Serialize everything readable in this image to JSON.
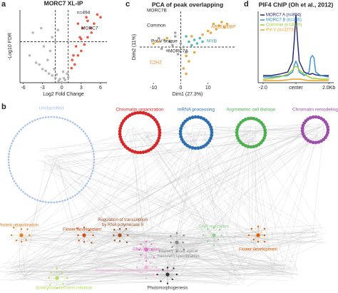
{
  "panel_labels": [
    "a",
    "b",
    "c",
    "d"
  ],
  "chart_data": [
    {
      "type": "scatter",
      "title": "MORC7 XL-IP",
      "xlabel": "Log2 Fold Change",
      "ylabel": "-Log10 FDR",
      "xlim": [
        -6.5,
        7
      ],
      "ylim": [
        0,
        8
      ],
      "xticks": [
        -6,
        -3,
        0,
        3,
        6
      ],
      "vlines": [
        -1,
        1
      ],
      "hlines": [
        4.5
      ],
      "annotations": [
        "n=494",
        "MORC7"
      ],
      "series": [
        {
          "color": "#b0b0b0",
          "x": [
            -5,
            -4,
            -3.5,
            -3,
            -2.5,
            -2,
            -1.5,
            -1,
            -0.5,
            0,
            0.5,
            1,
            -0.3,
            0.3,
            -1.2,
            -2.2,
            -1.8,
            -1,
            -0.6,
            -1.5,
            -2.8,
            -3.2,
            0.8,
            -0.8,
            0.2,
            -4.5
          ],
          "values": [
            3,
            2.2,
            2,
            1.5,
            1.3,
            1,
            0.8,
            0.5,
            0.2,
            0.05,
            0.3,
            0.6,
            0.4,
            0.5,
            1.5,
            2.5,
            3.5,
            4.5,
            5.8,
            5,
            4,
            6,
            1,
            0.9,
            1.2,
            5.5
          ]
        },
        {
          "color": "#e8452c",
          "x": [
            1.5,
            2,
            2.5,
            3,
            3.5,
            4,
            4.5,
            5,
            2.2,
            2.8,
            3.2,
            1.8,
            4,
            5.5,
            3.8,
            2.5,
            1.6,
            3,
            4.6,
            6
          ],
          "values": [
            1.6,
            2,
            3,
            3.5,
            4.2,
            5,
            6,
            6.5,
            4,
            5,
            6,
            3,
            6.8,
            7.5,
            7.2,
            6.5,
            2.5,
            4.8,
            5.5,
            7.2
          ]
        }
      ]
    },
    {
      "type": "scatter",
      "title": "PCA of peak overlapping",
      "xlabel": "Dim1 (27.3%)",
      "ylabel": "Dim2 (11%)",
      "xlim": [
        -15,
        20
      ],
      "ylim": [
        -20,
        20
      ],
      "xticks": [
        -10,
        0,
        10
      ],
      "vlines": [
        0
      ],
      "hlines": [
        0
      ],
      "annotations": [
        "MORC7B",
        "Common",
        "Pol V unique",
        "MORC7A",
        "AP2EREBP",
        "MYB",
        "C2H2"
      ],
      "series": [
        {
          "color": "#9a9a9a",
          "x": [
            -8,
            -6,
            -4,
            -2,
            0,
            -3,
            -5,
            -1,
            1,
            -7,
            2,
            -2
          ],
          "values": [
            5,
            4,
            3,
            6,
            2,
            1,
            -2,
            -4,
            0,
            -1,
            -3,
            8
          ]
        },
        {
          "color": "#e8a020",
          "x": [
            12,
            14,
            15,
            16,
            17,
            10,
            11,
            13,
            8,
            2,
            3,
            1,
            -5,
            -8,
            -10,
            4,
            5,
            2
          ],
          "values": [
            13,
            12,
            14,
            11,
            13,
            9,
            8,
            10,
            7,
            -5,
            -8,
            -12,
            5,
            3,
            2,
            6,
            -3,
            -15
          ]
        },
        {
          "color": "#40b0b0",
          "x": [
            3,
            5,
            6,
            4,
            7,
            2,
            8
          ],
          "values": [
            3,
            4,
            2,
            1,
            5,
            6,
            3
          ]
        }
      ]
    },
    {
      "type": "line",
      "title": "PIF4 ChIP (Oh et al., 2012)",
      "xlim": [
        -2.3,
        2.3
      ],
      "ylim": [
        0,
        10
      ],
      "xticks": [
        {
          "value": -2,
          "label": "-2.0"
        },
        {
          "value": 0,
          "label": "center"
        },
        {
          "value": 2,
          "label": "2.0Kb"
        }
      ],
      "x": [
        -2,
        -1.5,
        -1,
        -0.5,
        -0.2,
        -0.1,
        0,
        0.1,
        0.2,
        0.5,
        0.8,
        0.9,
        1,
        1.1,
        1.2,
        1.5,
        2
      ],
      "series": [
        {
          "name": "MORC7 A (n=894)",
          "color": "#1f1f6b",
          "values": [
            1,
            1,
            1.2,
            1.5,
            3,
            6,
            9.5,
            6,
            3,
            1.5,
            1.2,
            1.2,
            1.3,
            1.2,
            1.1,
            1,
            1
          ]
        },
        {
          "name": "MORC7 B (n=386)",
          "color": "#2f8fd6",
          "values": [
            0.8,
            0.8,
            0.9,
            1,
            1.5,
            2.5,
            3,
            2.5,
            1.5,
            1,
            1.5,
            3.5,
            3.8,
            3.5,
            1.5,
            1,
            0.8
          ]
        },
        {
          "name": "Common (n=4820)",
          "color": "#9acd32",
          "values": [
            0.5,
            0.6,
            0.8,
            1.2,
            1.8,
            2.2,
            2.3,
            2.2,
            1.8,
            1.2,
            0.8,
            0.7,
            0.6,
            0.6,
            0.6,
            0.5,
            0.5
          ]
        },
        {
          "name": "Pol V (n=3273)",
          "color": "#f0a020",
          "values": [
            0.3,
            0.3,
            0.3,
            0.4,
            0.5,
            0.5,
            0.5,
            0.5,
            0.5,
            0.4,
            0.3,
            0.3,
            0.3,
            0.3,
            0.3,
            0.3,
            0.3
          ]
        }
      ]
    }
  ],
  "network": {
    "modules": [
      {
        "label": "Unclassified",
        "color": "#a9c1ea"
      },
      {
        "label": "Chromatin organization",
        "color": "#d62728"
      },
      {
        "label": "mRNA processing",
        "color": "#2e6fb0"
      },
      {
        "label": "Asymmetric cell division",
        "color": "#4caf50"
      },
      {
        "label": "Chromatin remodeling",
        "color": "#9b4fa8"
      }
    ],
    "clusters": [
      {
        "label": [
          "Protein ubiquitination"
        ],
        "color": "#e08020"
      },
      {
        "label": [
          "Flower development"
        ],
        "color": "#c05a20"
      },
      {
        "label": [
          "Regulation of transcription",
          "by RNA polymerase II"
        ],
        "color": "#a0522d"
      },
      {
        "label": [
          "DNA replication"
        ],
        "color": "#90d090"
      },
      {
        "label": [
          "RNA transport"
        ],
        "color": "#e070c0"
      },
      {
        "label": [
          "Primary shoot apical",
          "meristem specification"
        ],
        "color": "#888888"
      },
      {
        "label": [
          "Flower development"
        ],
        "color": "#e06000"
      },
      {
        "label": [
          "Regulation of double-strand break repair"
        ],
        "color": "#f0b0e0"
      },
      {
        "label": [
          "Embryonic meristem initiation"
        ],
        "color": "#b0e060"
      },
      {
        "label": [
          "Photomorphogenesis"
        ],
        "color": "#333333"
      }
    ]
  }
}
